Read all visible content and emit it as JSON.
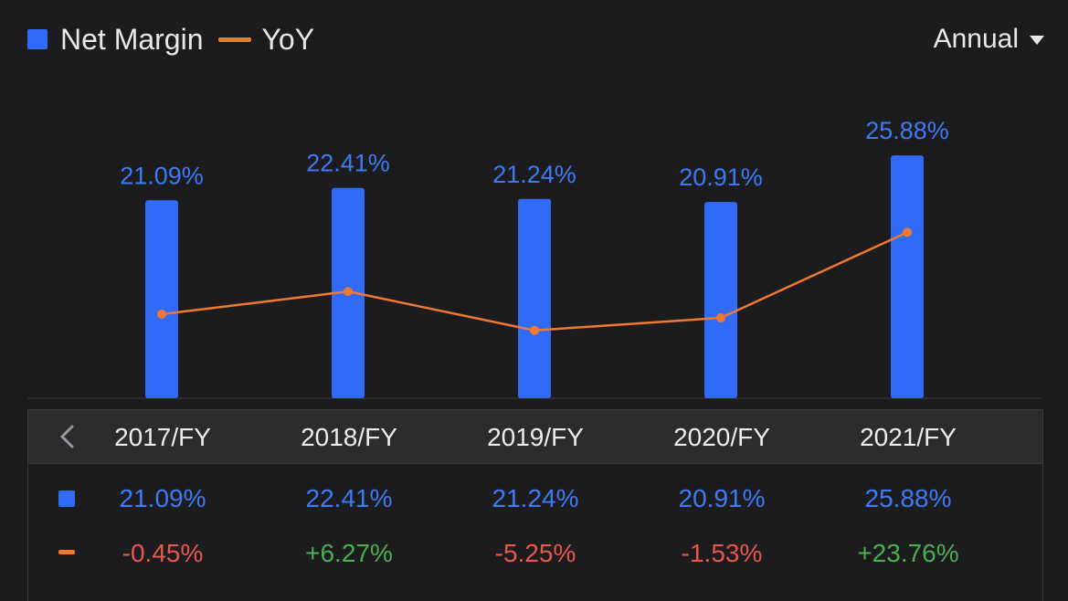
{
  "legend": {
    "series_bar_label": "Net Margin",
    "series_line_label": "YoY"
  },
  "period_selector": {
    "label": "Annual"
  },
  "colors": {
    "bar": "#2f6bf6",
    "line": "#f07832",
    "label_blue": "#3d7af5",
    "negative": "#e8574e",
    "positive": "#4cae50"
  },
  "table": {
    "columns": [
      "2017/FY",
      "2018/FY",
      "2019/FY",
      "2020/FY",
      "2021/FY"
    ],
    "net_margin": [
      "21.09%",
      "22.41%",
      "21.24%",
      "20.91%",
      "25.88%"
    ],
    "yoy": [
      "-0.45%",
      "+6.27%",
      "-5.25%",
      "-1.53%",
      "+23.76%"
    ]
  },
  "chart_data": {
    "type": "bar",
    "categories": [
      "2017/FY",
      "2018/FY",
      "2019/FY",
      "2020/FY",
      "2021/FY"
    ],
    "series": [
      {
        "name": "Net Margin",
        "type": "bar",
        "unit": "%",
        "values": [
          21.09,
          22.41,
          21.24,
          20.91,
          25.88
        ],
        "labels": [
          "21.09%",
          "22.41%",
          "21.24%",
          "20.91%",
          "25.88%"
        ]
      },
      {
        "name": "YoY",
        "type": "line",
        "unit": "%",
        "values": [
          -0.45,
          6.27,
          -5.25,
          -1.53,
          23.76
        ]
      }
    ],
    "title": "",
    "xlabel": "",
    "ylabel": "",
    "grid": false,
    "legend_position": "top-left"
  }
}
